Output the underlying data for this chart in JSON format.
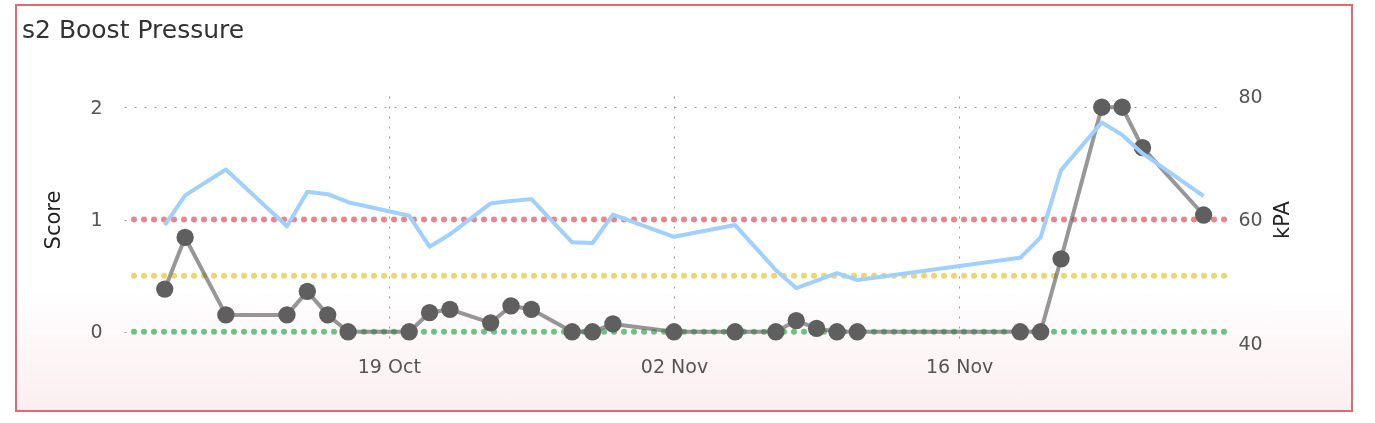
{
  "chart_data": {
    "type": "line",
    "title": "s2 Boost Pressure",
    "ylabel": "Score",
    "y2label": "kPA",
    "xlim": [
      "--10-06",
      "--11-29"
    ],
    "xticks": [
      {
        "value": "--10-19",
        "label": "19 Oct"
      },
      {
        "value": "--11-02",
        "label": "02 Nov"
      },
      {
        "value": "--11-16",
        "label": "16 Nov"
      }
    ],
    "ylim": [
      -0.1,
      2.1
    ],
    "yticks": [
      0,
      1,
      2
    ],
    "y2lim": [
      40,
      80
    ],
    "y2ticks": [
      40,
      60,
      80
    ],
    "grid": true,
    "line_style": "solid",
    "ref_lines": [
      {
        "axis": "y",
        "value": 1,
        "color": "#e8868e",
        "line_style": "dotted"
      },
      {
        "axis": "y",
        "value": 0.5,
        "color": "#ecd66e",
        "line_style": "dotted"
      },
      {
        "axis": "y",
        "value": 0,
        "color": "#6dc283",
        "line_style": "dotted"
      }
    ],
    "series": [
      {
        "color": "#5f5f5f",
        "marker": "circle",
        "x": [
          "--10-08",
          "--10-09",
          "--10-11",
          "--10-14",
          "--10-15",
          "--10-16",
          "--10-17",
          "--10-20",
          "--10-21",
          "--10-22",
          "--10-24",
          "--10-25",
          "--10-26",
          "--10-28",
          "--10-29",
          "--10-30",
          "--11-02",
          "--11-05",
          "--11-07",
          "--11-08",
          "--11-09",
          "--11-10",
          "--11-11",
          "--11-19",
          "--11-20",
          "--11-21",
          "--11-23",
          "--11-24",
          "--11-25",
          "--11-28"
        ],
        "values": [
          0.38,
          0.84,
          0.15,
          0.15,
          0.36,
          0.15,
          0,
          0,
          0.17,
          0.2,
          0.08,
          0.23,
          0.2,
          0,
          0,
          0.07,
          0,
          0,
          0,
          0.1,
          0.03,
          0,
          0,
          0,
          0,
          0.65,
          2,
          2,
          1.64,
          1.04
        ]
      },
      {
        "color": "#9fd0ff",
        "marker": "none",
        "axis": "y2",
        "x": [
          "--10-08",
          "--10-09",
          "--10-11",
          "--10-14",
          "--10-15",
          "--10-16",
          "--10-17",
          "--10-20",
          "--10-21",
          "--10-22",
          "--10-24",
          "--10-25",
          "--10-26",
          "--10-28",
          "--10-29",
          "--10-30",
          "--11-02",
          "--11-05",
          "--11-07",
          "--11-08",
          "--11-10",
          "--11-11",
          "--11-19",
          "--11-20",
          "--11-21",
          "--11-23",
          "--11-24",
          "--11-25",
          "--11-28"
        ],
        "values": [
          59.1,
          63.9,
          68.1,
          58.9,
          64.5,
          64.1,
          62.8,
          60.6,
          55.6,
          57.6,
          62.6,
          63,
          63.3,
          56.3,
          56.2,
          60.8,
          57.2,
          59.1,
          51.8,
          48.9,
          51.3,
          50.2,
          53.8,
          57.1,
          68,
          75.7,
          73.7,
          70.7,
          63.8
        ]
      }
    ]
  }
}
